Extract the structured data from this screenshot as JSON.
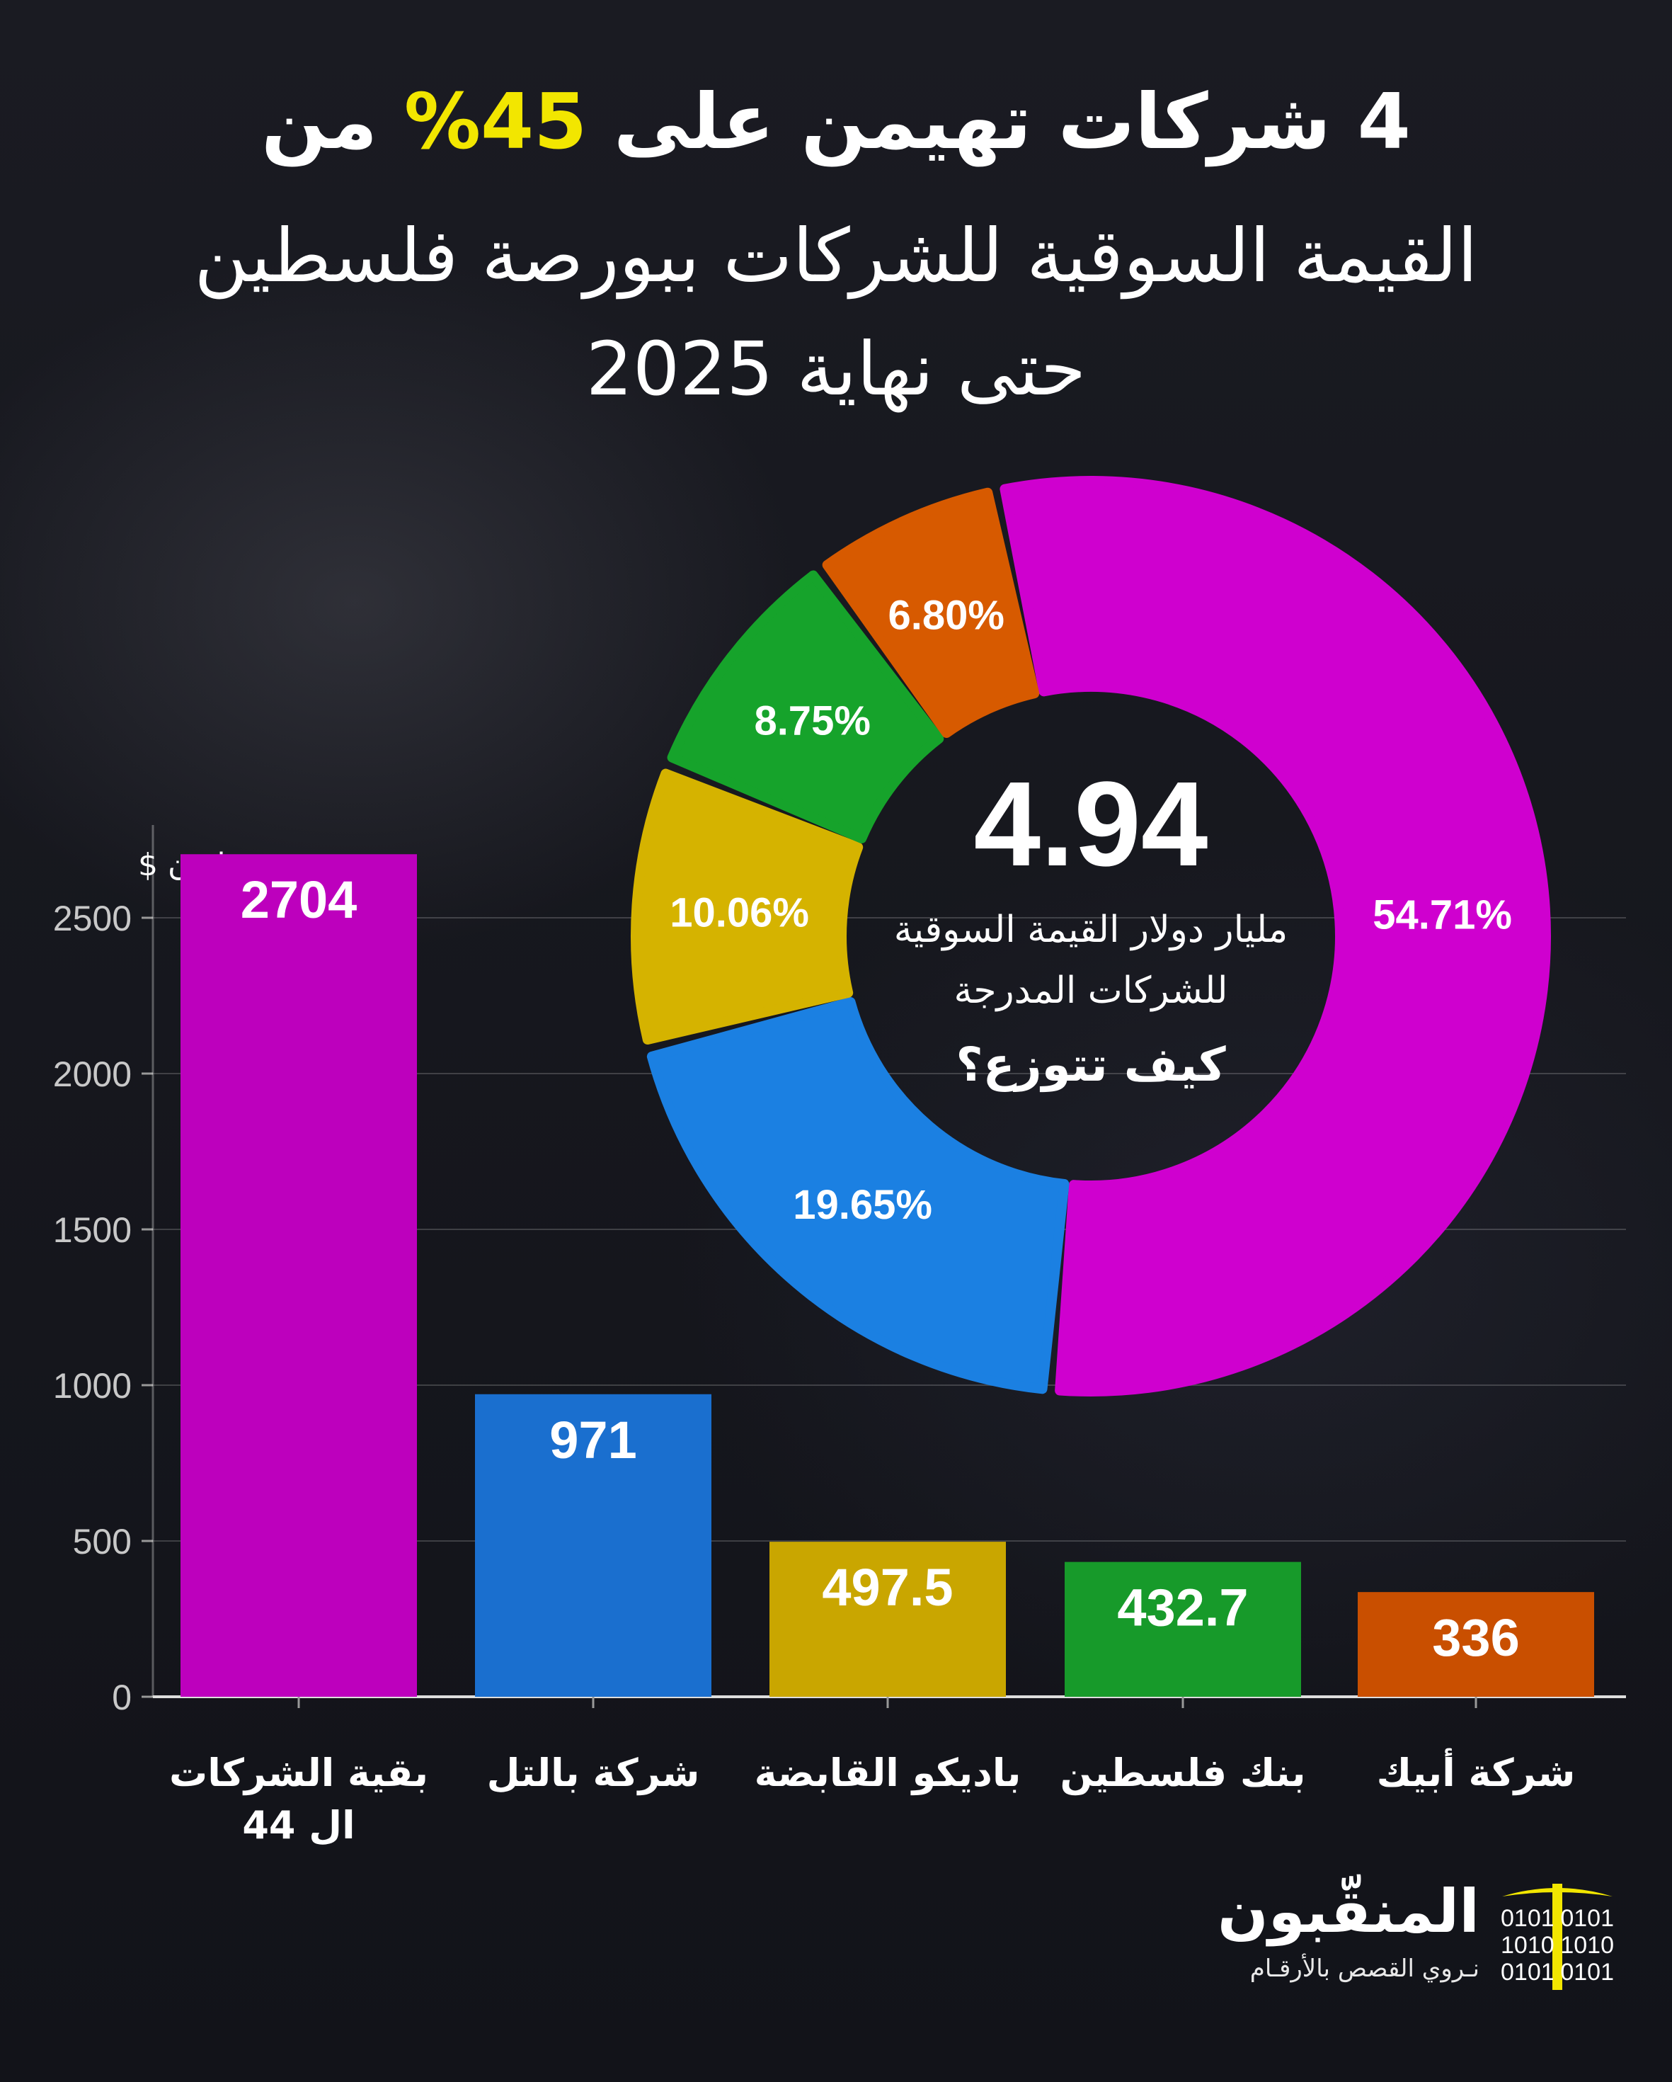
{
  "header": {
    "title_prefix": "4 شركات تهيمن على ",
    "title_highlight": "45%",
    "title_suffix": " من",
    "subtitle_line1": "القيمة السوقية للشركات ببورصة فلسطين",
    "subtitle_line2": "حتى نهاية 2025"
  },
  "colors": {
    "highlight": "#f2e600",
    "background": "#14151c"
  },
  "chart_data": [
    {
      "type": "pie",
      "variant": "donut",
      "center_value": "4.94",
      "center_text": "مليار دولار القيمة السوقية للشركات المدرجة",
      "center_question": "كيف تتوزع؟",
      "slices": [
        {
          "label": "54.71%",
          "value": 54.71,
          "color": "#cf00cf"
        },
        {
          "label": "19.65%",
          "value": 19.65,
          "color": "#1b80e2"
        },
        {
          "label": "10.06%",
          "value": 10.06,
          "color": "#d5b300"
        },
        {
          "label": "8.75%",
          "value": 8.75,
          "color": "#16a32b"
        },
        {
          "label": "6.80%",
          "value": 6.8,
          "color": "#d75a00"
        }
      ]
    },
    {
      "type": "bar",
      "ylabel": "مليون $",
      "ylim": [
        0,
        2700
      ],
      "yticks": [
        0,
        500,
        1000,
        1500,
        2000,
        2500
      ],
      "grid": true,
      "categories": [
        "بقية الشركات ال 44",
        "شركة بالتل",
        "باديكو القابضة",
        "بنك فلسطين",
        "شركة أبيك"
      ],
      "values": [
        2704,
        971,
        497.5,
        432.7,
        336
      ],
      "value_labels": [
        "2704",
        "971",
        "497.5",
        "432.7",
        "336"
      ],
      "colors": [
        "#bd00bd",
        "#1a6fcf",
        "#c9a600",
        "#179a2a",
        "#c94f00"
      ]
    }
  ],
  "logo": {
    "name": "المنقّبون",
    "tagline": "نـروي القصص بالأرقـام",
    "binary": [
      "0101",
      "1010",
      "0101"
    ],
    "accent": "#f2e600"
  }
}
